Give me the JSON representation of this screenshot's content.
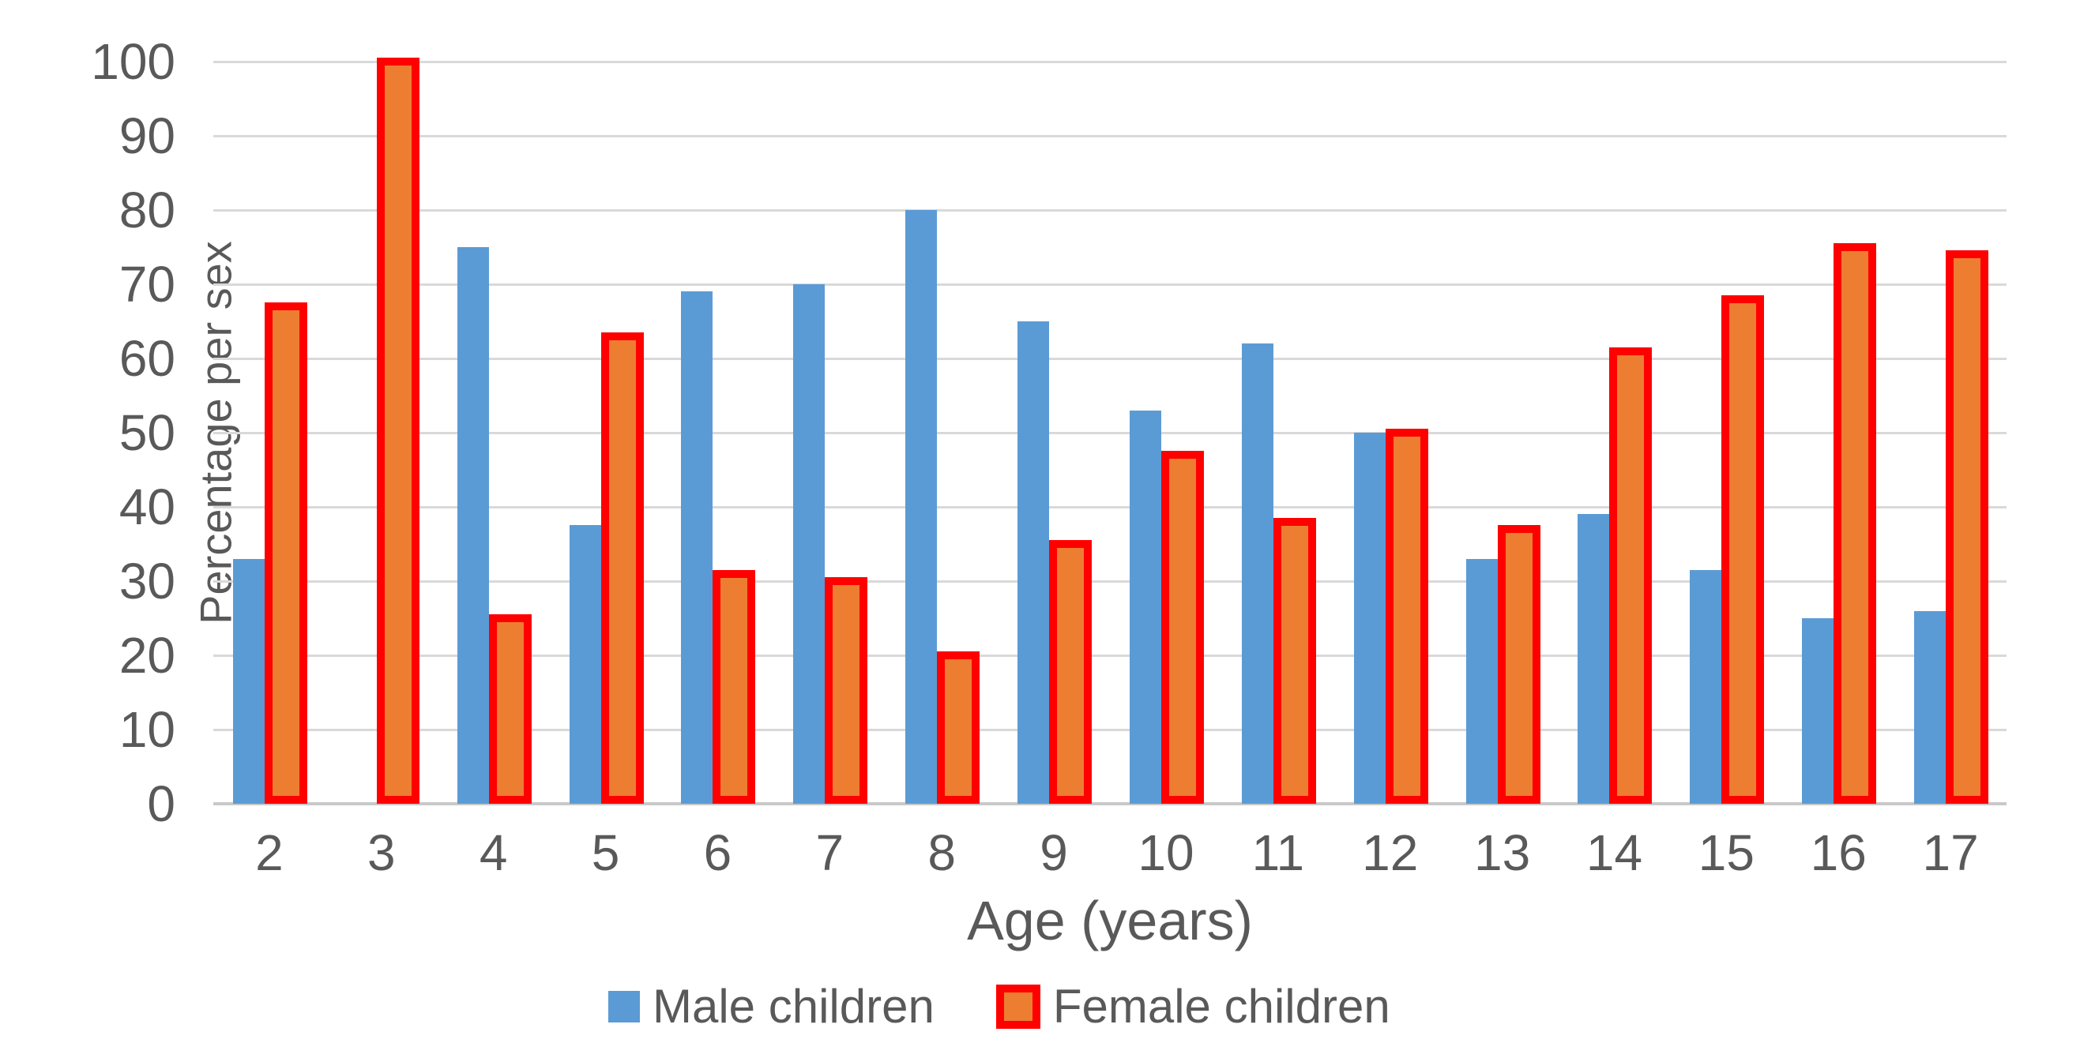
{
  "chart_data": {
    "type": "bar",
    "title": "",
    "xlabel": "Age (years)",
    "ylabel": "Percentage per sex",
    "categories": [
      "2",
      "3",
      "4",
      "5",
      "6",
      "7",
      "8",
      "9",
      "10",
      "11",
      "12",
      "13",
      "14",
      "15",
      "16",
      "17"
    ],
    "series": [
      {
        "name": "Male children",
        "color": "#5b9bd5",
        "values": [
          33,
          null,
          75,
          37.5,
          69,
          70,
          80,
          65,
          53,
          62,
          50,
          33,
          39,
          31.5,
          25,
          26
        ]
      },
      {
        "name": "Female children",
        "color": "#ed7d31",
        "border_color": "#ff0000",
        "values": [
          67,
          100,
          25,
          63,
          31,
          30,
          20,
          35,
          47,
          38,
          50,
          37,
          61,
          68,
          75,
          74
        ]
      }
    ],
    "ylim": [
      0,
      100
    ],
    "ytick_step": 10,
    "y_ticks": [
      "0",
      "10",
      "20",
      "30",
      "40",
      "50",
      "60",
      "70",
      "80",
      "90",
      "100"
    ],
    "grid": true,
    "legend_position": "bottom"
  },
  "colors": {
    "male_bar": "#5b9bd5",
    "female_bar_fill": "#ed7d31",
    "female_bar_border": "#ff0000",
    "gridline": "#d9d9d9",
    "axis_line": "#c9c9c9",
    "text": "#595959",
    "background": "#ffffff"
  }
}
